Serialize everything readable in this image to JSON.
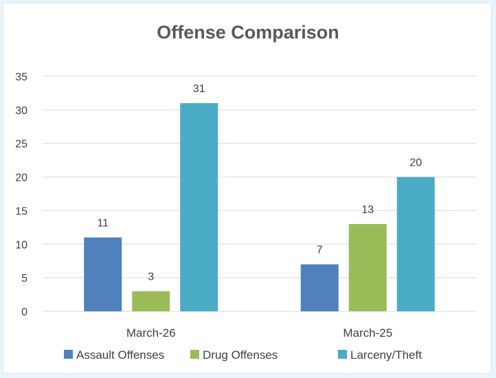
{
  "chart_data": {
    "type": "bar",
    "title": "Offense Comparison",
    "xlabel": "",
    "ylabel": "",
    "categories": [
      "March-26",
      "March-25"
    ],
    "series": [
      {
        "name": "Assault Offenses",
        "values": [
          11,
          7
        ],
        "color": "#4f81bd"
      },
      {
        "name": "Drug Offenses",
        "values": [
          3,
          13
        ],
        "color": "#9bbb59"
      },
      {
        "name": "Larceny/Theft",
        "values": [
          31,
          20
        ],
        "color": "#4bacc6"
      }
    ],
    "ylim": [
      0,
      35
    ],
    "yticks": [
      0,
      5,
      10,
      15,
      20,
      25,
      30,
      35
    ],
    "grid": true,
    "data_labels": true,
    "legend_position": "bottom",
    "colors": {
      "gridline": "#d9d9d9",
      "text": "#404040",
      "title": "#595959"
    }
  }
}
